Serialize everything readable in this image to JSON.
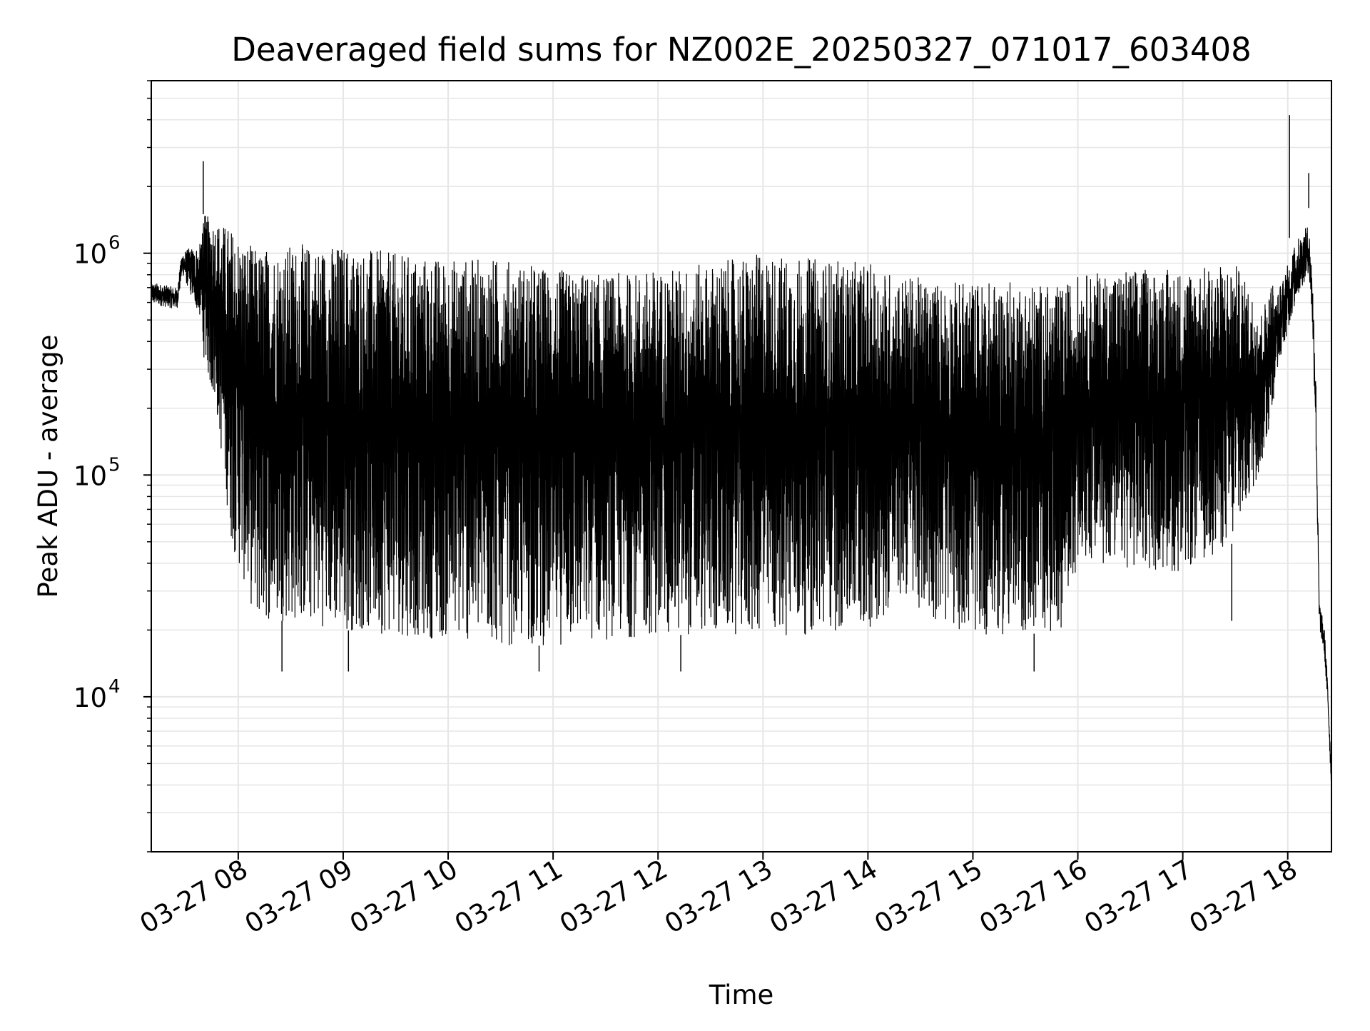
{
  "chart_data": {
    "type": "line",
    "title": "Deaveraged field sums for NZ002E_20250327_071017_603408",
    "xlabel": "Time",
    "ylabel": "Peak ADU - average",
    "xlim": [
      "2025-03-27T07:10:17",
      "2025-03-27T18:25:00"
    ],
    "ylim": [
      2000,
      6000000
    ],
    "yscale": "log",
    "grid": true,
    "line_color": "#000000",
    "grid_color": "#e6e6e6",
    "x_ticks": [
      {
        "value": "2025-03-27T08:00",
        "label": "03-27 08"
      },
      {
        "value": "2025-03-27T09:00",
        "label": "03-27 09"
      },
      {
        "value": "2025-03-27T10:00",
        "label": "03-27 10"
      },
      {
        "value": "2025-03-27T11:00",
        "label": "03-27 11"
      },
      {
        "value": "2025-03-27T12:00",
        "label": "03-27 12"
      },
      {
        "value": "2025-03-27T13:00",
        "label": "03-27 13"
      },
      {
        "value": "2025-03-27T14:00",
        "label": "03-27 14"
      },
      {
        "value": "2025-03-27T15:00",
        "label": "03-27 15"
      },
      {
        "value": "2025-03-27T16:00",
        "label": "03-27 16"
      },
      {
        "value": "2025-03-27T17:00",
        "label": "03-27 17"
      },
      {
        "value": "2025-03-27T18:00",
        "label": "03-27 18"
      }
    ],
    "y_ticks": [
      {
        "value": 10000,
        "base": "10",
        "exp": "4"
      },
      {
        "value": 100000,
        "base": "10",
        "exp": "5"
      },
      {
        "value": 1000000,
        "base": "10",
        "exp": "6"
      }
    ],
    "series": [
      {
        "envelope": [
          {
            "t": "2025-03-27T07:10",
            "low": 550000,
            "high": 800000
          },
          {
            "t": "2025-03-27T07:25",
            "low": 520000,
            "high": 750000
          },
          {
            "t": "2025-03-27T07:28",
            "low": 750000,
            "high": 1100000
          },
          {
            "t": "2025-03-27T07:40",
            "low": 350000,
            "high": 1500000
          },
          {
            "t": "2025-03-27T07:48",
            "low": 180000,
            "high": 1400000
          },
          {
            "t": "2025-03-27T07:56",
            "low": 50000,
            "high": 1300000
          },
          {
            "t": "2025-03-27T08:10",
            "low": 22000,
            "high": 1050000
          },
          {
            "t": "2025-03-27T08:30",
            "low": 22000,
            "high": 1100000
          },
          {
            "t": "2025-03-27T09:00",
            "low": 20000,
            "high": 1100000
          },
          {
            "t": "2025-03-27T09:30",
            "low": 19000,
            "high": 1000000
          },
          {
            "t": "2025-03-27T10:00",
            "low": 18000,
            "high": 950000
          },
          {
            "t": "2025-03-27T10:30",
            "low": 17000,
            "high": 950000
          },
          {
            "t": "2025-03-27T11:00",
            "low": 17000,
            "high": 850000
          },
          {
            "t": "2025-03-27T11:30",
            "low": 18000,
            "high": 800000
          },
          {
            "t": "2025-03-27T12:00",
            "low": 19000,
            "high": 850000
          },
          {
            "t": "2025-03-27T12:30",
            "low": 19000,
            "high": 900000
          },
          {
            "t": "2025-03-27T13:00",
            "low": 19000,
            "high": 1000000
          },
          {
            "t": "2025-03-27T13:30",
            "low": 19000,
            "high": 950000
          },
          {
            "t": "2025-03-27T14:00",
            "low": 20000,
            "high": 900000
          },
          {
            "t": "2025-03-27T14:20",
            "low": 28000,
            "high": 800000
          },
          {
            "t": "2025-03-27T14:40",
            "low": 22000,
            "high": 750000
          },
          {
            "t": "2025-03-27T15:00",
            "low": 19000,
            "high": 750000
          },
          {
            "t": "2025-03-27T15:30",
            "low": 19000,
            "high": 750000
          },
          {
            "t": "2025-03-27T15:50",
            "low": 20000,
            "high": 700000
          },
          {
            "t": "2025-03-27T16:00",
            "low": 40000,
            "high": 800000
          },
          {
            "t": "2025-03-27T16:30",
            "low": 38000,
            "high": 850000
          },
          {
            "t": "2025-03-27T17:00",
            "low": 36000,
            "high": 850000
          },
          {
            "t": "2025-03-27T17:30",
            "low": 50000,
            "high": 900000
          },
          {
            "t": "2025-03-27T17:45",
            "low": 110000,
            "high": 550000
          },
          {
            "t": "2025-03-27T17:55",
            "low": 250000,
            "high": 900000
          },
          {
            "t": "2025-03-27T18:05",
            "low": 500000,
            "high": 1400000
          },
          {
            "t": "2025-03-27T18:12",
            "low": 700000,
            "high": 1600000
          },
          {
            "t": "2025-03-27T18:14",
            "low": 400000,
            "high": 1000000
          },
          {
            "t": "2025-03-27T18:16",
            "low": 120000,
            "high": 400000
          },
          {
            "t": "2025-03-27T18:18",
            "low": 19000,
            "high": 30000
          },
          {
            "t": "2025-03-27T18:21",
            "low": 14000,
            "high": 22000
          },
          {
            "t": "2025-03-27T18:23",
            "low": 8000,
            "high": 12000
          },
          {
            "t": "2025-03-27T18:25",
            "low": 3500,
            "high": 5000
          }
        ],
        "spikes": [
          {
            "t": "2025-03-27T07:40",
            "value": 2600000
          },
          {
            "t": "2025-03-27T18:01",
            "value": 4200000
          },
          {
            "t": "2025-03-27T18:12",
            "value": 2300000
          },
          {
            "t": "2025-03-27T08:25",
            "value": 13000
          },
          {
            "t": "2025-03-27T09:03",
            "value": 13000
          },
          {
            "t": "2025-03-27T10:52",
            "value": 13000
          },
          {
            "t": "2025-03-27T12:13",
            "value": 13000
          },
          {
            "t": "2025-03-27T15:35",
            "value": 13000
          },
          {
            "t": "2025-03-27T17:28",
            "value": 22000
          }
        ]
      }
    ]
  }
}
